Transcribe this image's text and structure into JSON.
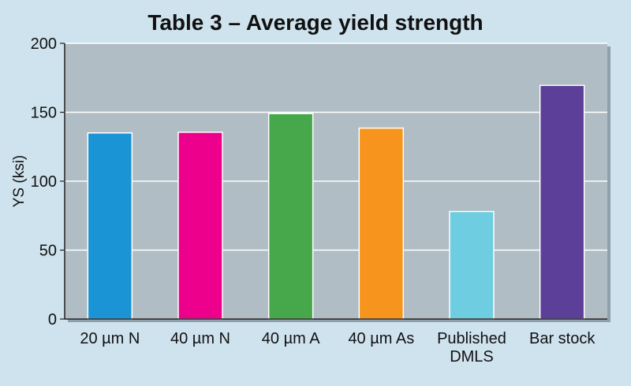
{
  "chart_data": {
    "type": "bar",
    "title": "Table 3 – Average yield strength",
    "xlabel": "",
    "ylabel": "YS (ksi)",
    "ylim": [
      0,
      200
    ],
    "yticks": [
      0,
      50,
      100,
      150,
      200
    ],
    "grid": true,
    "categories": [
      "20 µm N",
      "40 µm N",
      "40 µm A",
      "40 µm As",
      "Published DMLS",
      "Bar stock"
    ],
    "values": [
      135,
      135.5,
      149,
      138.5,
      78,
      169.5
    ],
    "colors": [
      "#1a94d4",
      "#ec008c",
      "#46a84a",
      "#f7941d",
      "#6ecde0",
      "#5b3f99"
    ],
    "plot_background": "#b0bdc4",
    "page_background": "#cfe3ee"
  }
}
